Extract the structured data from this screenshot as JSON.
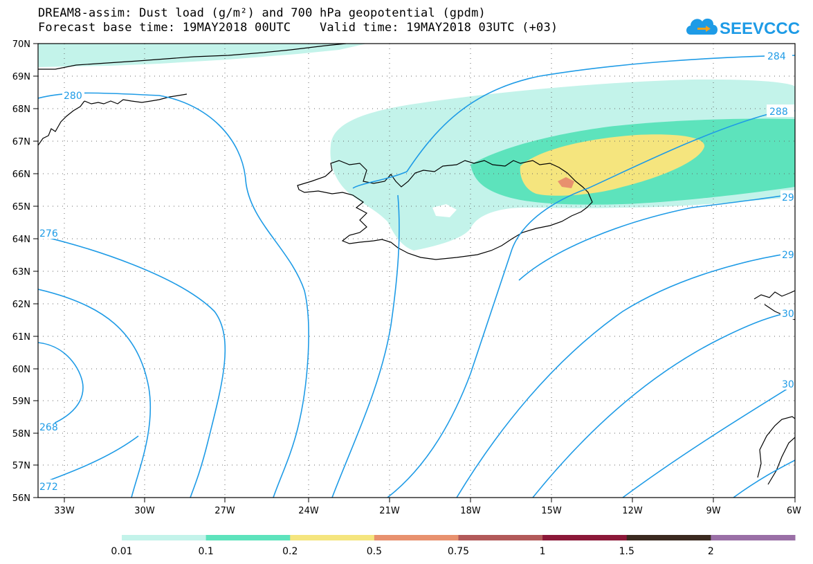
{
  "header": {
    "title": "DREAM8-assim: Dust load (g/m²) and 700 hPa geopotential (gpdm)",
    "subtitle": "Forecast base time: 19MAY2018 00UTC    Valid time: 19MAY2018 03UTC (+03)",
    "logo_text": "SEEVCCC"
  },
  "map": {
    "lat_labels": [
      "70N",
      "69N",
      "68N",
      "67N",
      "66N",
      "65N",
      "64N",
      "63N",
      "62N",
      "61N",
      "60N",
      "59N",
      "58N",
      "57N",
      "56N"
    ],
    "lon_labels": [
      "33W",
      "30W",
      "27W",
      "24W",
      "21W",
      "18W",
      "15W",
      "12W",
      "9W",
      "6W"
    ],
    "contour_labels": {
      "c284": "284",
      "c288": "288",
      "c280": "280",
      "c276": "276",
      "c272": "272",
      "c268": "268",
      "c292": "29",
      "c296": "29",
      "c300": "30",
      "c304": "30"
    },
    "colors": {
      "contour": "#1e9be6",
      "coast": "#000000"
    }
  },
  "legend": {
    "labels": [
      "0.01",
      "0.1",
      "0.2",
      "0.5",
      "0.75",
      "1",
      "1.5",
      "2"
    ],
    "colors": [
      "#c3f3ea",
      "#5de3bc",
      "#f5e57e",
      "#e8916e",
      "#b25959",
      "#8b1838",
      "#3b2a20",
      "#9a6fa6"
    ]
  }
}
